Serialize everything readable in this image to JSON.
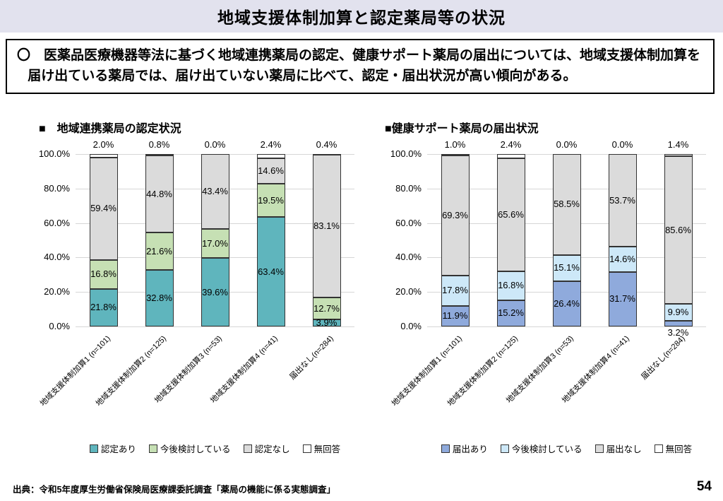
{
  "page": {
    "title": "地域支援体制加算と認定薬局等の状況",
    "lead_text": "〇　医薬品医療機器等法に基づく地域連携薬局の認定、健康サポート薬局の届出については、地域支援体制加算を届け出ている薬局では、届け出ていない薬局に比べて、認定・届出状況が高い傾向がある。",
    "source": "出典：令和5年度厚生労働省保険局医療課委託調査「薬局の機能に係る実態調査」",
    "page_number": "54",
    "colors": {
      "title_band": "#E2E2EE",
      "segment_border": "#333333",
      "gridline": "#D6D6D6"
    }
  },
  "chart_data": [
    {
      "type": "bar",
      "stacked": true,
      "stack_order": "bottom-to-top",
      "title": "■　地域連携薬局の認定状況",
      "categories": [
        "地域支援体制加算1 (n=101)",
        "地域支援体制加算2 (n=125)",
        "地域支援体制加算3 (n=53)",
        "地域支援体制加算4 (n=41)",
        "届出なし(n=284)"
      ],
      "series": [
        {
          "name": "認定あり",
          "color": "#5FB5BD",
          "values": [
            21.8,
            32.8,
            39.6,
            63.4,
            3.9
          ]
        },
        {
          "name": "今後検討している",
          "color": "#C6E0B4",
          "values": [
            16.8,
            21.6,
            17.0,
            19.5,
            12.7
          ]
        },
        {
          "name": "認定なし",
          "color": "#DBDBDB",
          "values": [
            59.4,
            44.8,
            43.4,
            14.6,
            83.1
          ]
        },
        {
          "name": "無回答",
          "color": "#FFFFFF",
          "values": [
            2.0,
            0.8,
            0.0,
            2.4,
            0.4
          ]
        }
      ],
      "ylabel": "",
      "ylim": [
        0,
        100
      ],
      "yticks": [
        "0.0%",
        "20.0%",
        "40.0%",
        "60.0%",
        "80.0%",
        "100.0%"
      ],
      "grid": true,
      "legend_position": "bottom"
    },
    {
      "type": "bar",
      "stacked": true,
      "stack_order": "bottom-to-top",
      "title": "■健康サポート薬局の届出状況",
      "categories": [
        "地域支援体制加算1 (n=101)",
        "地域支援体制加算2 (n=125)",
        "地域支援体制加算3 (n=53)",
        "地域支援体制加算4 (n=41)",
        "届出なし(n=284)"
      ],
      "series": [
        {
          "name": "届出あり",
          "color": "#8FAADC",
          "values": [
            11.9,
            15.2,
            26.4,
            31.7,
            3.2
          ]
        },
        {
          "name": "今後検討している",
          "color": "#CDE8F8",
          "values": [
            17.8,
            16.8,
            15.1,
            14.6,
            9.9
          ]
        },
        {
          "name": "届出なし",
          "color": "#DBDBDB",
          "values": [
            69.3,
            65.6,
            58.5,
            53.7,
            85.6
          ]
        },
        {
          "name": "無回答",
          "color": "#FFFFFF",
          "values": [
            1.0,
            2.4,
            0.0,
            0.0,
            1.4
          ]
        }
      ],
      "ylabel": "",
      "ylim": [
        0,
        100
      ],
      "yticks": [
        "0.0%",
        "20.0%",
        "40.0%",
        "60.0%",
        "80.0%",
        "100.0%"
      ],
      "grid": true,
      "legend_position": "bottom"
    }
  ]
}
